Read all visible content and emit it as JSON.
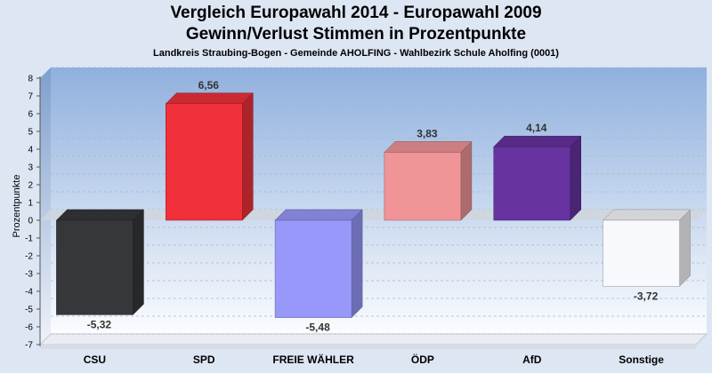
{
  "header": {
    "title_line1": "Vergleich Europawahl 2014 - Europawahl 2009",
    "title_line2": "Gewinn/Verlust Stimmen in Prozentpunkte",
    "subtitle": "Landkreis Straubing-Bogen - Gemeinde AHOLFING - Wahlbezirk Schule Aholfing (0001)"
  },
  "chart_data": {
    "type": "bar",
    "title": "Vergleich Europawahl 2014 - Europawahl 2009 / Gewinn/Verlust Stimmen in Prozentpunkte",
    "xlabel": "",
    "ylabel": "Prozentpunkte",
    "ylim": [
      -7,
      8
    ],
    "yticks": [
      8,
      7,
      6,
      5,
      4,
      3,
      2,
      1,
      0,
      -1,
      -2,
      -3,
      -4,
      -5,
      -6,
      -7
    ],
    "grid": true,
    "categories": [
      "CSU",
      "SPD",
      "FREIE WÄHLER",
      "ÖDP",
      "AfD",
      "Sonstige"
    ],
    "values": [
      -5.32,
      6.56,
      -5.48,
      3.83,
      4.14,
      -3.72
    ],
    "value_labels": [
      "-5,32",
      "6,56",
      "-5,48",
      "3,83",
      "4,14",
      "-3,72"
    ],
    "colors": [
      "#35373a",
      "#f0303a",
      "#9898fb",
      "#f09498",
      "#6633a0",
      "#f8f9fc"
    ]
  }
}
